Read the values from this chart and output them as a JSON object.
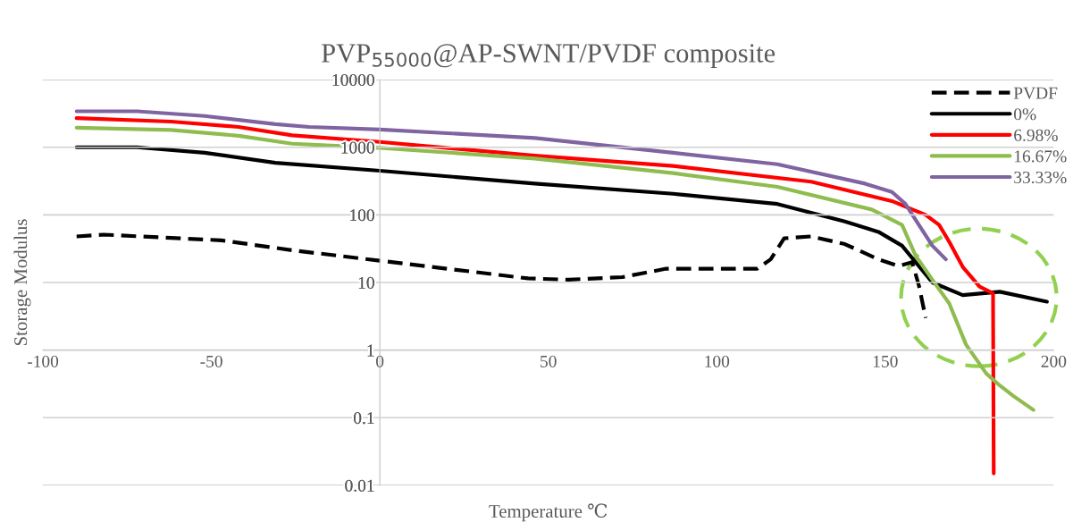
{
  "chart_data": {
    "type": "line",
    "title": "PVP$_{55000}$@AP-SWNT/PVDF composite",
    "xlabel": "Temperature ℃",
    "ylabel": "Storage Modulus",
    "log": "y",
    "grid": "y",
    "legend": "top right",
    "marker": "none",
    "xlim": [
      -100,
      200
    ],
    "xticks": [
      -100,
      -50,
      0,
      50,
      100,
      150,
      200
    ],
    "ylim": [
      0.01,
      10000
    ],
    "yticks": [
      0.01,
      0.1,
      1,
      10,
      100,
      1000,
      10000
    ],
    "series": [
      {
        "name": "PVDF",
        "color": "#000000",
        "line_style": "dashed",
        "x": [
          -90,
          -82,
          -47,
          -26,
          0,
          44,
          56,
          72,
          85,
          112,
          116,
          120,
          128,
          138,
          148,
          154,
          158,
          160,
          162
        ],
        "values": [
          48,
          51,
          42,
          30,
          21,
          11.5,
          11,
          12,
          16,
          16,
          22,
          45,
          48,
          37,
          22,
          17.5,
          20,
          9,
          3
        ]
      },
      {
        "name": "0%",
        "color": "#000000",
        "line_style": "solid",
        "x": [
          -90,
          -72,
          -52,
          -31,
          0,
          46,
          87,
          118,
          138,
          148,
          155,
          159,
          164,
          173,
          184,
          198
        ],
        "values": [
          1000,
          1000,
          830,
          590,
          450,
          290,
          205,
          145,
          80,
          56,
          35,
          20,
          10,
          6.5,
          7.3,
          5.2
        ]
      },
      {
        "name": "6.98%",
        "color": "#ff0000",
        "line_style": "solid",
        "x": [
          -90,
          -62,
          -42,
          -26,
          0,
          46,
          87,
          128,
          152,
          162,
          166,
          169,
          173,
          178,
          182,
          182.2
        ],
        "values": [
          2700,
          2400,
          2000,
          1500,
          1200,
          750,
          530,
          310,
          160,
          100,
          71,
          40,
          17,
          8.7,
          6.9,
          0.015
        ]
      },
      {
        "name": "16.67%",
        "color": "#8fbc4f",
        "line_style": "solid",
        "x": [
          -90,
          -62,
          -42,
          -26,
          0,
          46,
          87,
          118,
          146,
          155,
          159,
          164,
          169,
          174,
          180,
          184,
          188,
          194
        ],
        "values": [
          1950,
          1800,
          1480,
          1130,
          980,
          680,
          415,
          260,
          120,
          71,
          25,
          11,
          4.9,
          1.2,
          0.45,
          0.3,
          0.21,
          0.13
        ]
      },
      {
        "name": "33.33%",
        "color": "#8064a2",
        "line_style": "solid",
        "x": [
          -90,
          -72,
          -52,
          -31,
          -21,
          0,
          46,
          87,
          118,
          144,
          152,
          156,
          160,
          164,
          168
        ],
        "values": [
          3400,
          3400,
          2900,
          2200,
          2000,
          1830,
          1370,
          830,
          560,
          290,
          218,
          145,
          71,
          35,
          22
        ]
      }
    ]
  }
}
